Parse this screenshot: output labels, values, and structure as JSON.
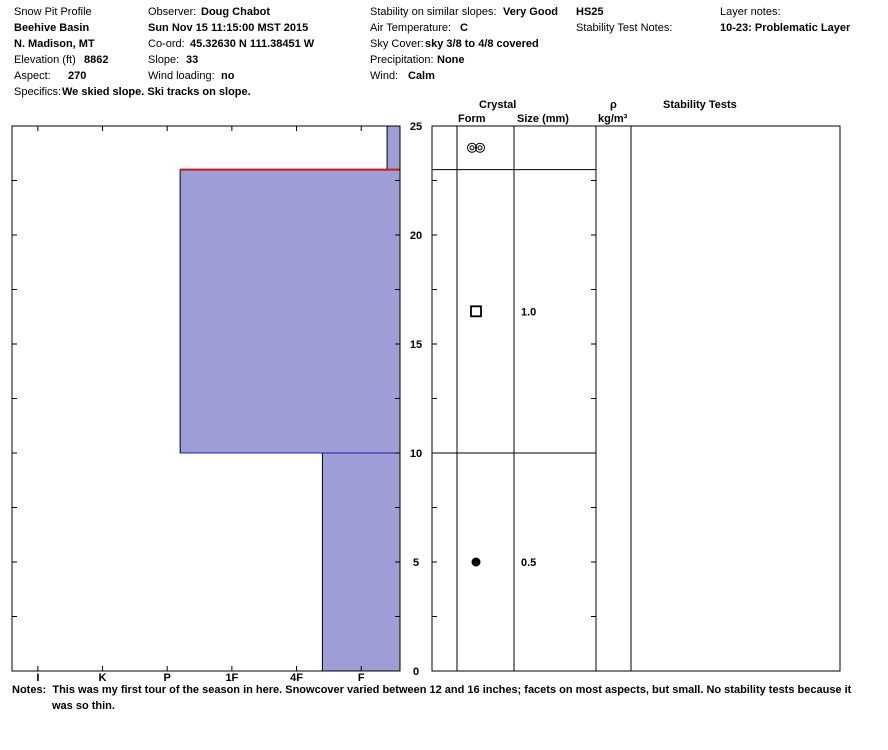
{
  "header": {
    "title": "Snow Pit Profile",
    "location": "Beehive Basin",
    "region": "N. Madison, MT",
    "elevation_label": "Elevation (ft)",
    "elevation": "8862",
    "aspect_label": "Aspect:",
    "aspect": "270",
    "specifics_label": "Specifics:",
    "specifics": "We skied slope. Ski tracks on slope.",
    "observer_label": "Observer:",
    "observer": "Doug Chabot",
    "date": "Sun Nov 15 11:15:00 MST 2015",
    "coord_label": "Co-ord:",
    "coord": "45.32630 N 111.38451 W",
    "slope_label": "Slope:",
    "slope": "33",
    "wind_loading_label": "Wind loading:",
    "wind_loading": "no",
    "stability_label": "Stability on similar slopes:",
    "stability": "Very Good",
    "air_temp_label": "Air Temperature:",
    "air_temp": "C",
    "sky_label": "Sky Cover:",
    "sky": "sky 3/8 to 4/8 covered",
    "precip_label": "Precipitation:",
    "precip": "None",
    "wind_label": "Wind:",
    "wind": "Calm",
    "hs": "HS25",
    "stab_notes_label": "Stability Test Notes:",
    "layer_notes_label": "Layer notes:",
    "layer_notes": "10-23: Problematic Layer"
  },
  "table_headers": {
    "crystal": "Crystal",
    "form": "Form",
    "size": "Size (mm)",
    "rho": "ρ",
    "density_unit": "kg/m³",
    "stability_tests": "Stability Tests"
  },
  "notes": {
    "label": "Notes:",
    "line1": "This was my first tour of the season in here.  Snowcover varied between 12 and 16 inches; facets on most aspects, but small. No stability tests because it",
    "line2": "was so thin."
  },
  "colors": {
    "hardness_fill": "#9e9ed6",
    "layer_boundary": "#1c1cb4",
    "problem_layer": "#e01010",
    "axis": "#000000"
  },
  "chart_data": {
    "type": "bar",
    "orientation": "horizontal",
    "x_axis_labels": [
      "I",
      "K",
      "P",
      "1F",
      "4F",
      "F"
    ],
    "y_ticks": [
      0,
      5,
      10,
      15,
      20,
      25
    ],
    "ylim": [
      0,
      25
    ],
    "hardness_scale_max": 6,
    "layers": [
      {
        "bottom": 0,
        "top": 10,
        "hardness": 4.8,
        "grain": "round",
        "size": "0.5"
      },
      {
        "bottom": 10,
        "top": 23,
        "hardness": 2.6,
        "grain": "facet",
        "size": "1.0"
      },
      {
        "bottom": 23,
        "top": 25,
        "hardness": 5.8,
        "grain": "precip",
        "size": ""
      }
    ],
    "problem_layer_top": 23,
    "problem_layer_hardness": 2.6
  }
}
